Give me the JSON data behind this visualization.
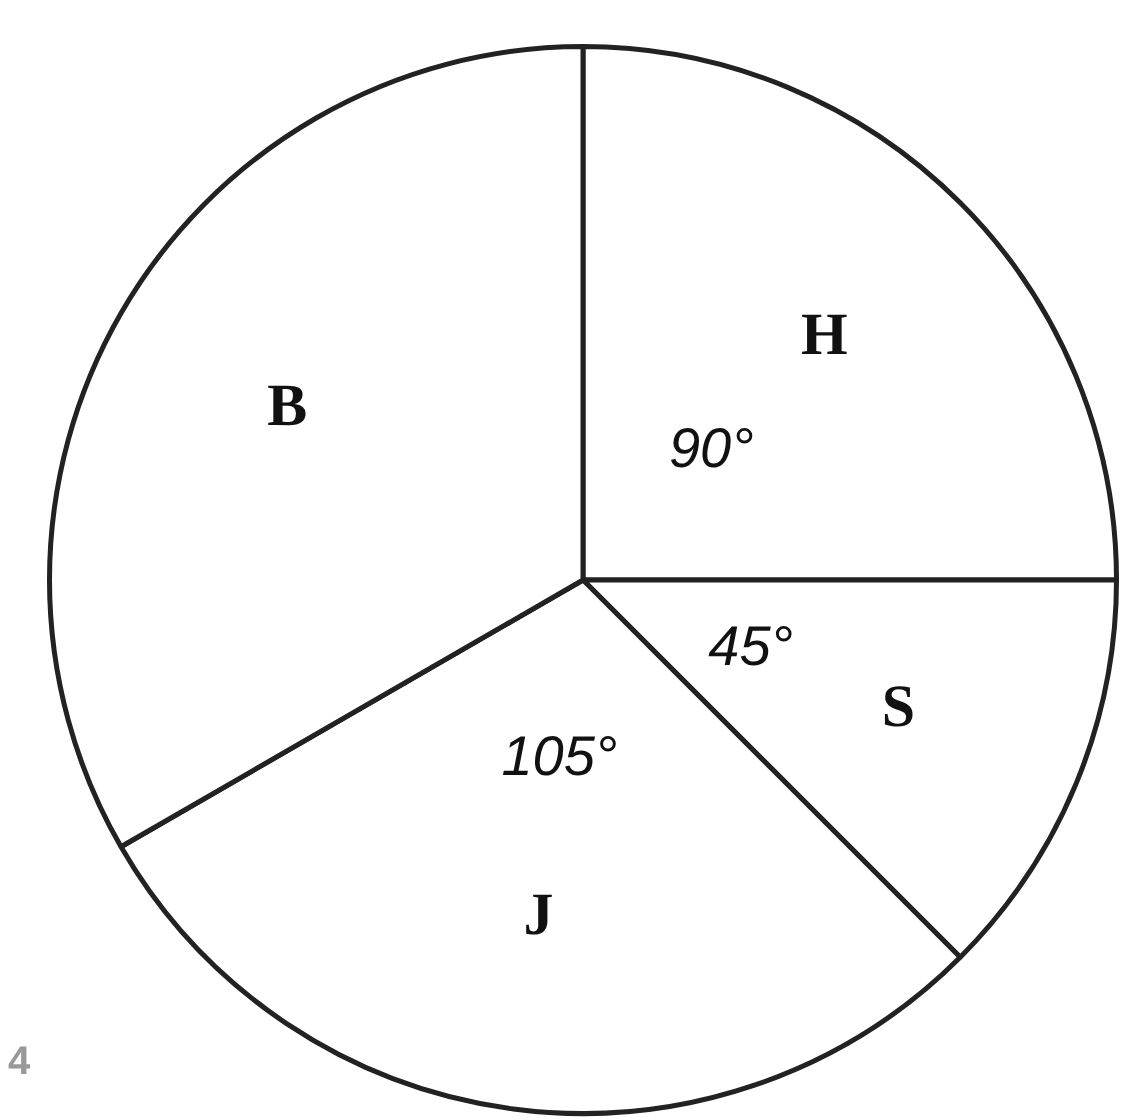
{
  "chart_data": {
    "type": "pie",
    "categories": [
      "H",
      "S",
      "J",
      "B"
    ],
    "values": [
      90,
      45,
      105,
      120
    ],
    "colors": [
      "#ffffff",
      "#ffffff",
      "#ffffff",
      "#ffffff"
    ],
    "value_labels": [
      "90°",
      "45°",
      "105°",
      null
    ],
    "legend": false,
    "annotations": [
      "4"
    ]
  }
}
